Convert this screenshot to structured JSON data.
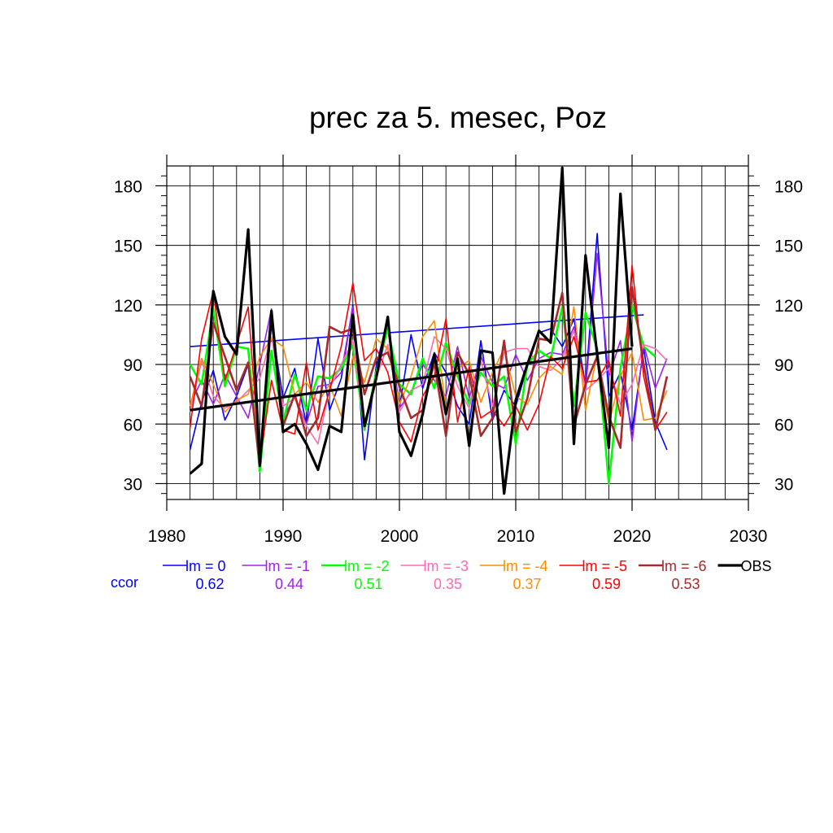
{
  "chart_data": {
    "type": "line",
    "title": "prec za 5. mesec, Poz",
    "xlabel": "",
    "ylabel": "",
    "xlim": [
      1980,
      2030
    ],
    "ylim": [
      22,
      190
    ],
    "x_ticks": [
      1980,
      1990,
      2000,
      2010,
      2020,
      2030
    ],
    "y_ticks": [
      30,
      60,
      90,
      120,
      150,
      180
    ],
    "grid": true,
    "legend_position": "bottom",
    "ccor_label": "ccor",
    "series": [
      {
        "name": "lm = 0",
        "color": "#0000ff",
        "ccor": "0.62",
        "start": 1982,
        "width": 1.6,
        "values": [
          47,
          71,
          87,
          62,
          74,
          90,
          38,
          110,
          73,
          88,
          60,
          103,
          67,
          83,
          120,
          42,
          89,
          113,
          68,
          105,
          78,
          96,
          86,
          69,
          60,
          102,
          62,
          77,
          69,
          89,
          106,
          108,
          99,
          113,
          80,
          156,
          74,
          86,
          57,
          98,
          61,
          47
        ],
        "trend": [
          [
            1982,
            99
          ],
          [
            2021,
            115
          ]
        ]
      },
      {
        "name": "lm = -1",
        "color": "#a020f0",
        "ccor": "0.44",
        "start": 1982,
        "width": 1.6,
        "values": [
          70,
          82,
          70,
          85,
          74,
          63,
          90,
          118,
          63,
          74,
          60,
          79,
          80,
          86,
          119,
          57,
          83,
          108,
          68,
          76,
          90,
          82,
          74,
          99,
          73,
          94,
          81,
          78,
          95,
          82,
          93,
          96,
          95,
          109,
          77,
          146,
          84,
          102,
          51,
          100,
          78,
          93
        ]
      },
      {
        "name": "lm = -2",
        "color": "#00ff00",
        "ccor": "0.51",
        "start": 1982,
        "width": 2.6,
        "values": [
          90,
          80,
          118,
          79,
          99,
          98,
          36,
          97,
          61,
          85,
          67,
          84,
          83,
          88,
          100,
          57,
          86,
          108,
          80,
          75,
          93,
          78,
          101,
          84,
          70,
          86,
          79,
          84,
          50,
          90,
          97,
          93,
          119,
          69,
          116,
          98,
          30,
          88,
          120,
          99,
          94
        ]
      },
      {
        "name": "lm = -3",
        "color": "#ff69b4",
        "ccor": "0.35",
        "start": 1982,
        "width": 1.6,
        "values": [
          66,
          92,
          74,
          68,
          71,
          77,
          83,
          104,
          69,
          73,
          59,
          50,
          78,
          90,
          102,
          58,
          83,
          100,
          66,
          77,
          80,
          104,
          98,
          79,
          68,
          92,
          69,
          96,
          98,
          98,
          89,
          87,
          93,
          107,
          77,
          82,
          88,
          70,
          80,
          100,
          98,
          92
        ]
      },
      {
        "name": "lm = -4",
        "color": "#ff8c00",
        "ccor": "0.37",
        "start": 1982,
        "width": 1.6,
        "values": [
          69,
          93,
          80,
          66,
          72,
          75,
          94,
          103,
          99,
          75,
          81,
          71,
          80,
          64,
          94,
          81,
          103,
          98,
          70,
          84,
          104,
          112,
          68,
          88,
          92,
          71,
          86,
          98,
          74,
          70,
          83,
          89,
          85,
          119,
          67,
          95,
          60,
          84,
          96,
          62,
          63,
          77
        ]
      },
      {
        "name": "lm = -5",
        "color": "#ff0000",
        "ccor": "0.59",
        "start": 1982,
        "width": 1.6,
        "values": [
          58,
          103,
          127,
          82,
          100,
          119,
          41,
          82,
          57,
          55,
          91,
          57,
          77,
          99,
          131,
          92,
          98,
          86,
          61,
          51,
          74,
          84,
          113,
          61,
          89,
          63,
          67,
          59,
          69,
          57,
          70,
          94,
          88,
          104,
          81,
          82,
          92,
          64,
          140,
          84,
          57,
          66
        ]
      },
      {
        "name": "lm = -6",
        "color": "#a52a2a",
        "ccor": "0.53",
        "start": 1982,
        "width": 2.6,
        "values": [
          84,
          69,
          111,
          94,
          77,
          91,
          39,
          115,
          59,
          75,
          54,
          63,
          109,
          106,
          108,
          75,
          93,
          96,
          79,
          63,
          67,
          91,
          54,
          96,
          85,
          54,
          63,
          102,
          56,
          73,
          103,
          102,
          126,
          59,
          80,
          94,
          64,
          48,
          129,
          90,
          57,
          84
        ]
      },
      {
        "name": "OBS",
        "color": "#000000",
        "ccor": "",
        "start": 1982,
        "width": 3.2,
        "values": [
          35,
          40,
          127,
          104,
          95,
          158,
          39,
          117,
          56,
          60,
          50,
          37,
          59,
          56,
          115,
          59,
          83,
          114,
          56,
          44,
          65,
          95,
          65,
          93,
          49,
          97,
          96,
          25,
          72,
          90,
          107,
          101,
          189,
          50,
          145,
          95,
          48,
          176,
          99
        ],
        "trend": [
          [
            1982,
            67
          ],
          [
            2020,
            98
          ]
        ]
      }
    ]
  }
}
